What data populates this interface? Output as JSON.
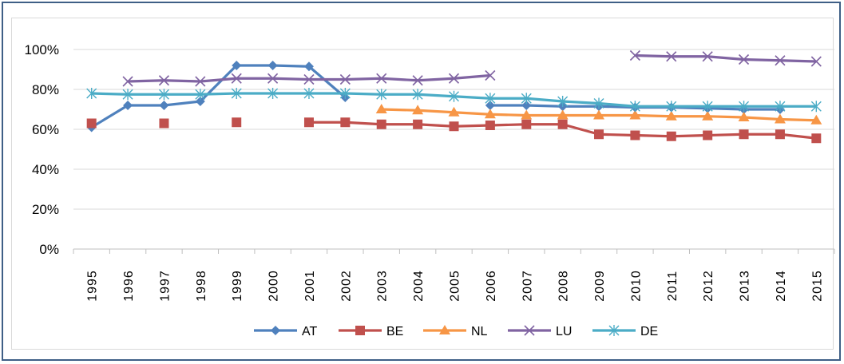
{
  "chart_data": {
    "type": "line",
    "title": "",
    "xlabel": "",
    "ylabel": "",
    "x": [
      "1995",
      "1996",
      "1997",
      "1998",
      "1999",
      "2000",
      "2001",
      "2002",
      "2003",
      "2004",
      "2005",
      "2006",
      "2007",
      "2008",
      "2009",
      "2010",
      "2011",
      "2012",
      "2013",
      "2014",
      "2015"
    ],
    "y_ticks": [
      "0%",
      "20%",
      "40%",
      "60%",
      "80%",
      "100%"
    ],
    "ylim": [
      0,
      1.0
    ],
    "grid": true,
    "legend": "bottom",
    "series": [
      {
        "name": "AT",
        "color": "#4f81bd",
        "marker": "diamond",
        "values": [
          0.61,
          0.72,
          0.72,
          0.74,
          0.92,
          0.92,
          0.915,
          0.76,
          null,
          null,
          null,
          0.72,
          0.72,
          0.715,
          0.715,
          0.71,
          0.71,
          0.705,
          0.7,
          0.7,
          null
        ]
      },
      {
        "name": "BE",
        "color": "#c0504d",
        "marker": "square",
        "values": [
          0.63,
          null,
          0.63,
          null,
          0.635,
          null,
          0.635,
          0.635,
          0.625,
          0.625,
          0.615,
          0.62,
          0.625,
          0.625,
          0.575,
          0.57,
          0.565,
          0.57,
          0.575,
          0.575,
          0.555
        ]
      },
      {
        "name": "NL",
        "color": "#f79646",
        "marker": "triangle",
        "values": [
          null,
          null,
          null,
          null,
          null,
          null,
          null,
          null,
          0.7,
          0.695,
          0.685,
          0.675,
          0.67,
          0.67,
          0.67,
          0.67,
          0.665,
          0.665,
          0.66,
          0.65,
          0.645
        ]
      },
      {
        "name": "LU",
        "color": "#8064a2",
        "marker": "x",
        "values": [
          null,
          0.84,
          0.845,
          0.84,
          0.855,
          0.855,
          0.85,
          0.85,
          0.855,
          0.845,
          0.855,
          0.87,
          null,
          null,
          null,
          0.97,
          0.965,
          0.965,
          0.95,
          0.945,
          0.94
        ]
      },
      {
        "name": "DE",
        "color": "#4bacc6",
        "marker": "star",
        "values": [
          0.78,
          0.775,
          0.775,
          0.775,
          0.78,
          0.78,
          0.78,
          0.78,
          0.775,
          0.775,
          0.765,
          0.755,
          0.755,
          0.74,
          0.73,
          0.715,
          0.715,
          0.715,
          0.715,
          0.715,
          0.715
        ]
      }
    ]
  }
}
